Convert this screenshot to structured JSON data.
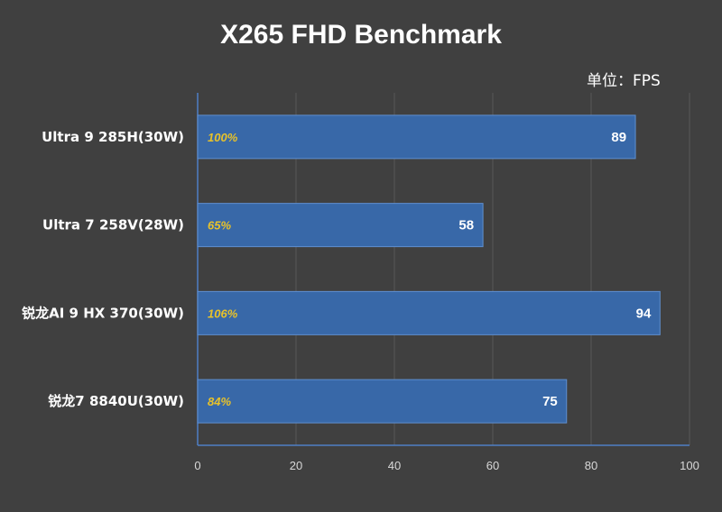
{
  "chart_data": {
    "type": "bar",
    "orientation": "horizontal",
    "title": "X265 FHD Benchmark",
    "unit_label": "单位：FPS",
    "categories": [
      "Ultra 9 285H(30W)",
      "Ultra 7 258V(28W)",
      "锐龙AI 9 HX 370(30W)",
      "锐龙7 8840U(30W)"
    ],
    "values": [
      89,
      58,
      94,
      75
    ],
    "percent_labels": [
      "100%",
      "65%",
      "106%",
      "84%"
    ],
    "xlim": [
      0,
      100
    ],
    "xticks": [
      0,
      20,
      40,
      60,
      80,
      100
    ],
    "grid": true,
    "colors": {
      "background": "#404040",
      "bar": "#3868a8",
      "bar_edge": "#5f8fd0",
      "grid": "#595959",
      "axis": "#4f7fc6",
      "value_text": "#ffffff",
      "percent_text": "#e8c22a"
    }
  }
}
